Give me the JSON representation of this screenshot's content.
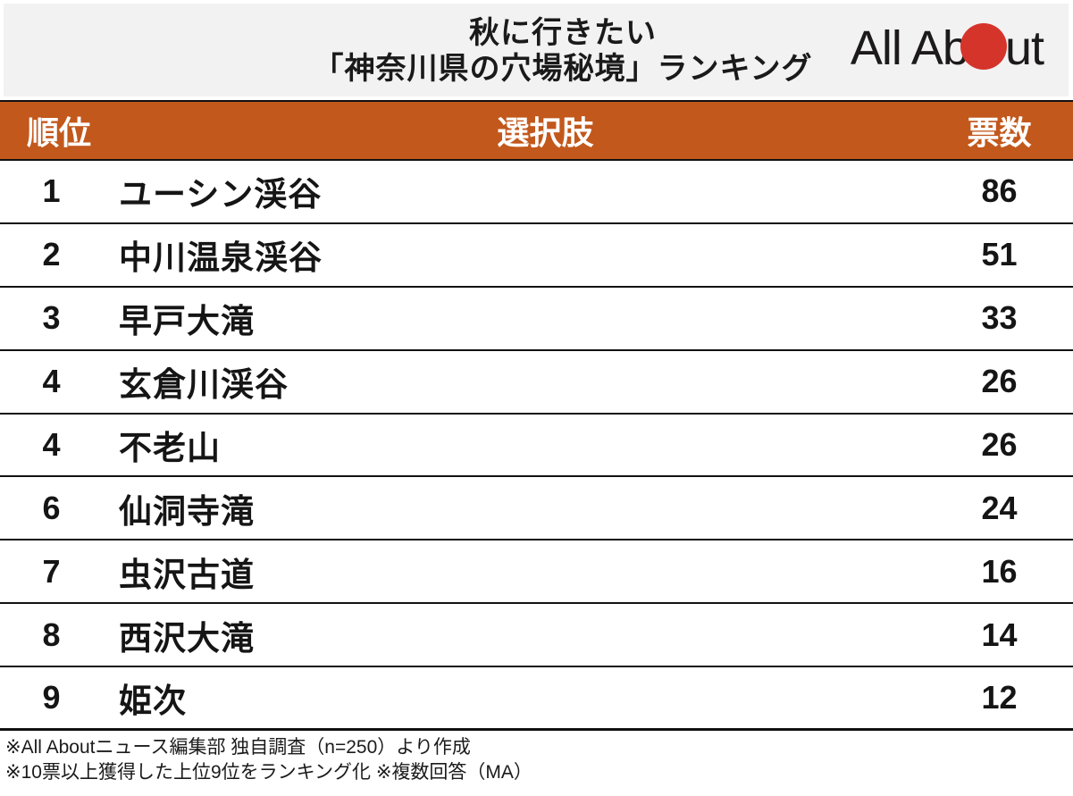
{
  "header": {
    "title_line1": "秋に行きたい",
    "title_line2": "「神奈川県の穴場秘境」ランキング",
    "logo": {
      "name": "All About",
      "text_before_dot": "All Ab",
      "text_after_dot": "ut",
      "dot_color": "#d5342b"
    }
  },
  "table": {
    "header_bg_color": "#c2581c",
    "columns": {
      "rank": "順位",
      "choice": "選択肢",
      "votes": "票数"
    },
    "rows": [
      {
        "rank": "1",
        "name": "ユーシン渓谷",
        "votes": "86"
      },
      {
        "rank": "2",
        "name": "中川温泉渓谷",
        "votes": "51"
      },
      {
        "rank": "3",
        "name": "早戸大滝",
        "votes": "33"
      },
      {
        "rank": "4",
        "name": "玄倉川渓谷",
        "votes": "26"
      },
      {
        "rank": "4",
        "name": "不老山",
        "votes": "26"
      },
      {
        "rank": "6",
        "name": "仙洞寺滝",
        "votes": "24"
      },
      {
        "rank": "7",
        "name": "虫沢古道",
        "votes": "16"
      },
      {
        "rank": "8",
        "name": "西沢大滝",
        "votes": "14"
      },
      {
        "rank": "9",
        "name": "姫次",
        "votes": "12"
      }
    ]
  },
  "footer": {
    "note1": "※All Aboutニュース編集部 独自調査（n=250）より作成",
    "note2": "※10票以上獲得した上位9位をランキング化 ※複数回答（MA）"
  },
  "chart_data": {
    "type": "table",
    "title": "秋に行きたい「神奈川県の穴場秘境」ランキング",
    "columns": [
      "順位",
      "選択肢",
      "票数"
    ],
    "rows": [
      [
        1,
        "ユーシン渓谷",
        86
      ],
      [
        2,
        "中川温泉渓谷",
        51
      ],
      [
        3,
        "早戸大滝",
        33
      ],
      [
        4,
        "玄倉川渓谷",
        26
      ],
      [
        4,
        "不老山",
        26
      ],
      [
        6,
        "仙洞寺滝",
        24
      ],
      [
        7,
        "虫沢古道",
        16
      ],
      [
        8,
        "西沢大滝",
        14
      ],
      [
        9,
        "姫次",
        12
      ]
    ],
    "notes": [
      "※All Aboutニュース編集部 独自調査（n=250）より作成",
      "※10票以上獲得した上位9位をランキング化 ※複数回答（MA）"
    ],
    "source": "All Aboutニュース編集部 独自調査 (n=250)"
  }
}
